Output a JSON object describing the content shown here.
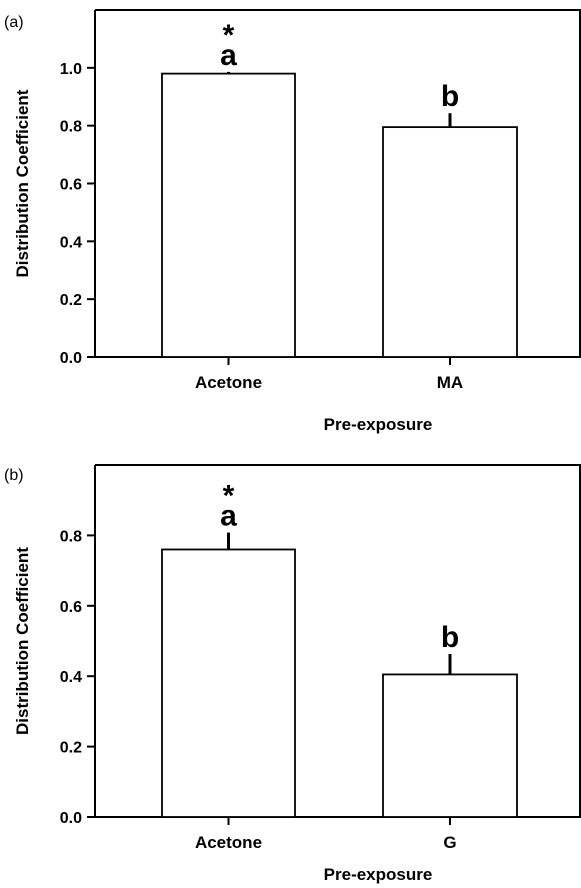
{
  "chart_data": [
    {
      "type": "bar",
      "panel_label": "(a)",
      "categories": [
        "Acetone",
        "MA"
      ],
      "values": [
        0.98,
        0.795
      ],
      "errors": [
        0.006,
        0.048
      ],
      "significance_letters": [
        "a",
        "b"
      ],
      "significance_stars": [
        "*",
        ""
      ],
      "xlabel": "Pre-exposure",
      "ylabel": "Distribution Coefficient",
      "ylim": [
        0,
        1.2
      ],
      "yticks": [
        0.0,
        0.2,
        0.4,
        0.6,
        0.8,
        1.0
      ],
      "ytick_labels": [
        "0.0",
        "0.2",
        "0.4",
        "0.6",
        "0.8",
        "1.0"
      ],
      "bar_color": "#ffffff",
      "edge_color": "#000000",
      "grid": false
    },
    {
      "type": "bar",
      "panel_label": "(b)",
      "categories": [
        "Acetone",
        "G"
      ],
      "values": [
        0.76,
        0.405
      ],
      "errors": [
        0.048,
        0.058
      ],
      "significance_letters": [
        "a",
        "b"
      ],
      "significance_stars": [
        "*",
        ""
      ],
      "xlabel": "Pre-exposure",
      "ylabel": "Distribution Coefficient",
      "ylim": [
        0,
        1.0
      ],
      "yticks": [
        0.0,
        0.2,
        0.4,
        0.6,
        0.8
      ],
      "ytick_labels": [
        "0.0",
        "0.2",
        "0.4",
        "0.6",
        "0.8"
      ],
      "bar_color": "#ffffff",
      "edge_color": "#000000",
      "grid": false
    }
  ]
}
